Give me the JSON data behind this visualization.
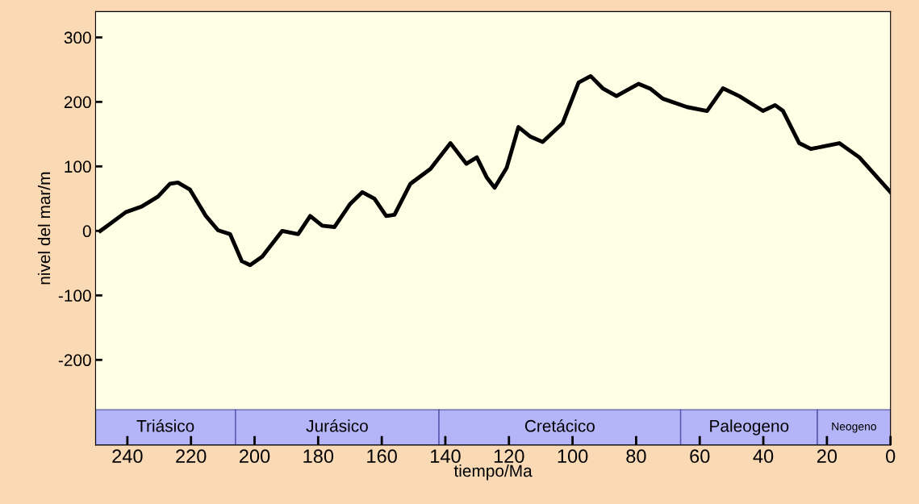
{
  "chart_data": {
    "type": "line",
    "xlabel": "tiempo/Ma",
    "ylabel": "nivel del mar/m",
    "x": [
      248.5,
      246.8,
      240.5,
      235.4,
      230.4,
      226.6,
      224.1,
      220.3,
      215.3,
      211.5,
      207.7,
      204,
      201.4,
      197.6,
      191.3,
      186.3,
      182.5,
      178.7,
      174.9,
      169.9,
      166.1,
      162.3,
      158.6,
      156,
      151,
      144.7,
      138.4,
      133.4,
      130.1,
      127,
      124.5,
      120.7,
      117,
      113.2,
      109.4,
      103.1,
      98.1,
      94.3,
      90.5,
      86.2,
      79.2,
      75.4,
      71.6,
      64,
      57.7,
      52.7,
      47.6,
      40.1,
      36.3,
      33.8,
      28.7,
      25,
      16.1,
      9.8,
      0
    ],
    "series": [
      {
        "color": "#000000",
        "values": [
          0,
          6,
          29,
          38,
          53,
          73,
          75,
          64,
          23,
          1,
          -5,
          -47,
          -53,
          -40,
          0,
          -5,
          23,
          8,
          6,
          42,
          60,
          50,
          23,
          25,
          73,
          96,
          136,
          104,
          114,
          83,
          67,
          98,
          161,
          146,
          138,
          167,
          230,
          240,
          221,
          209,
          228,
          220,
          205,
          192,
          186,
          221,
          209,
          186,
          195,
          186,
          136,
          127,
          136,
          114,
          60
        ]
      }
    ],
    "xlim": [
      250,
      0
    ],
    "ylim": [
      -332,
      340
    ],
    "xticks": [
      240,
      220,
      200,
      180,
      160,
      140,
      120,
      100,
      80,
      60,
      40,
      20,
      0
    ],
    "yticks": [
      300,
      200,
      100,
      0,
      -100,
      -200
    ],
    "bands": [
      {
        "axis": "x",
        "from": 250,
        "to": 206,
        "label": "Triásico",
        "color": "#b4b4f8"
      },
      {
        "axis": "x",
        "from": 206,
        "to": 142,
        "label": "Jurásico",
        "color": "#b4b4f8"
      },
      {
        "axis": "x",
        "from": 142,
        "to": 66,
        "label": "Cretácico",
        "color": "#b4b4f8"
      },
      {
        "axis": "x",
        "from": 66,
        "to": 23,
        "label": "Paleogeno",
        "color": "#b4b4f8"
      },
      {
        "axis": "x",
        "from": 23,
        "to": 0,
        "label": "Neogeno",
        "color": "#b4b4f8"
      }
    ],
    "grid": false,
    "legend": false,
    "marker": "none",
    "line_style": "solid"
  }
}
